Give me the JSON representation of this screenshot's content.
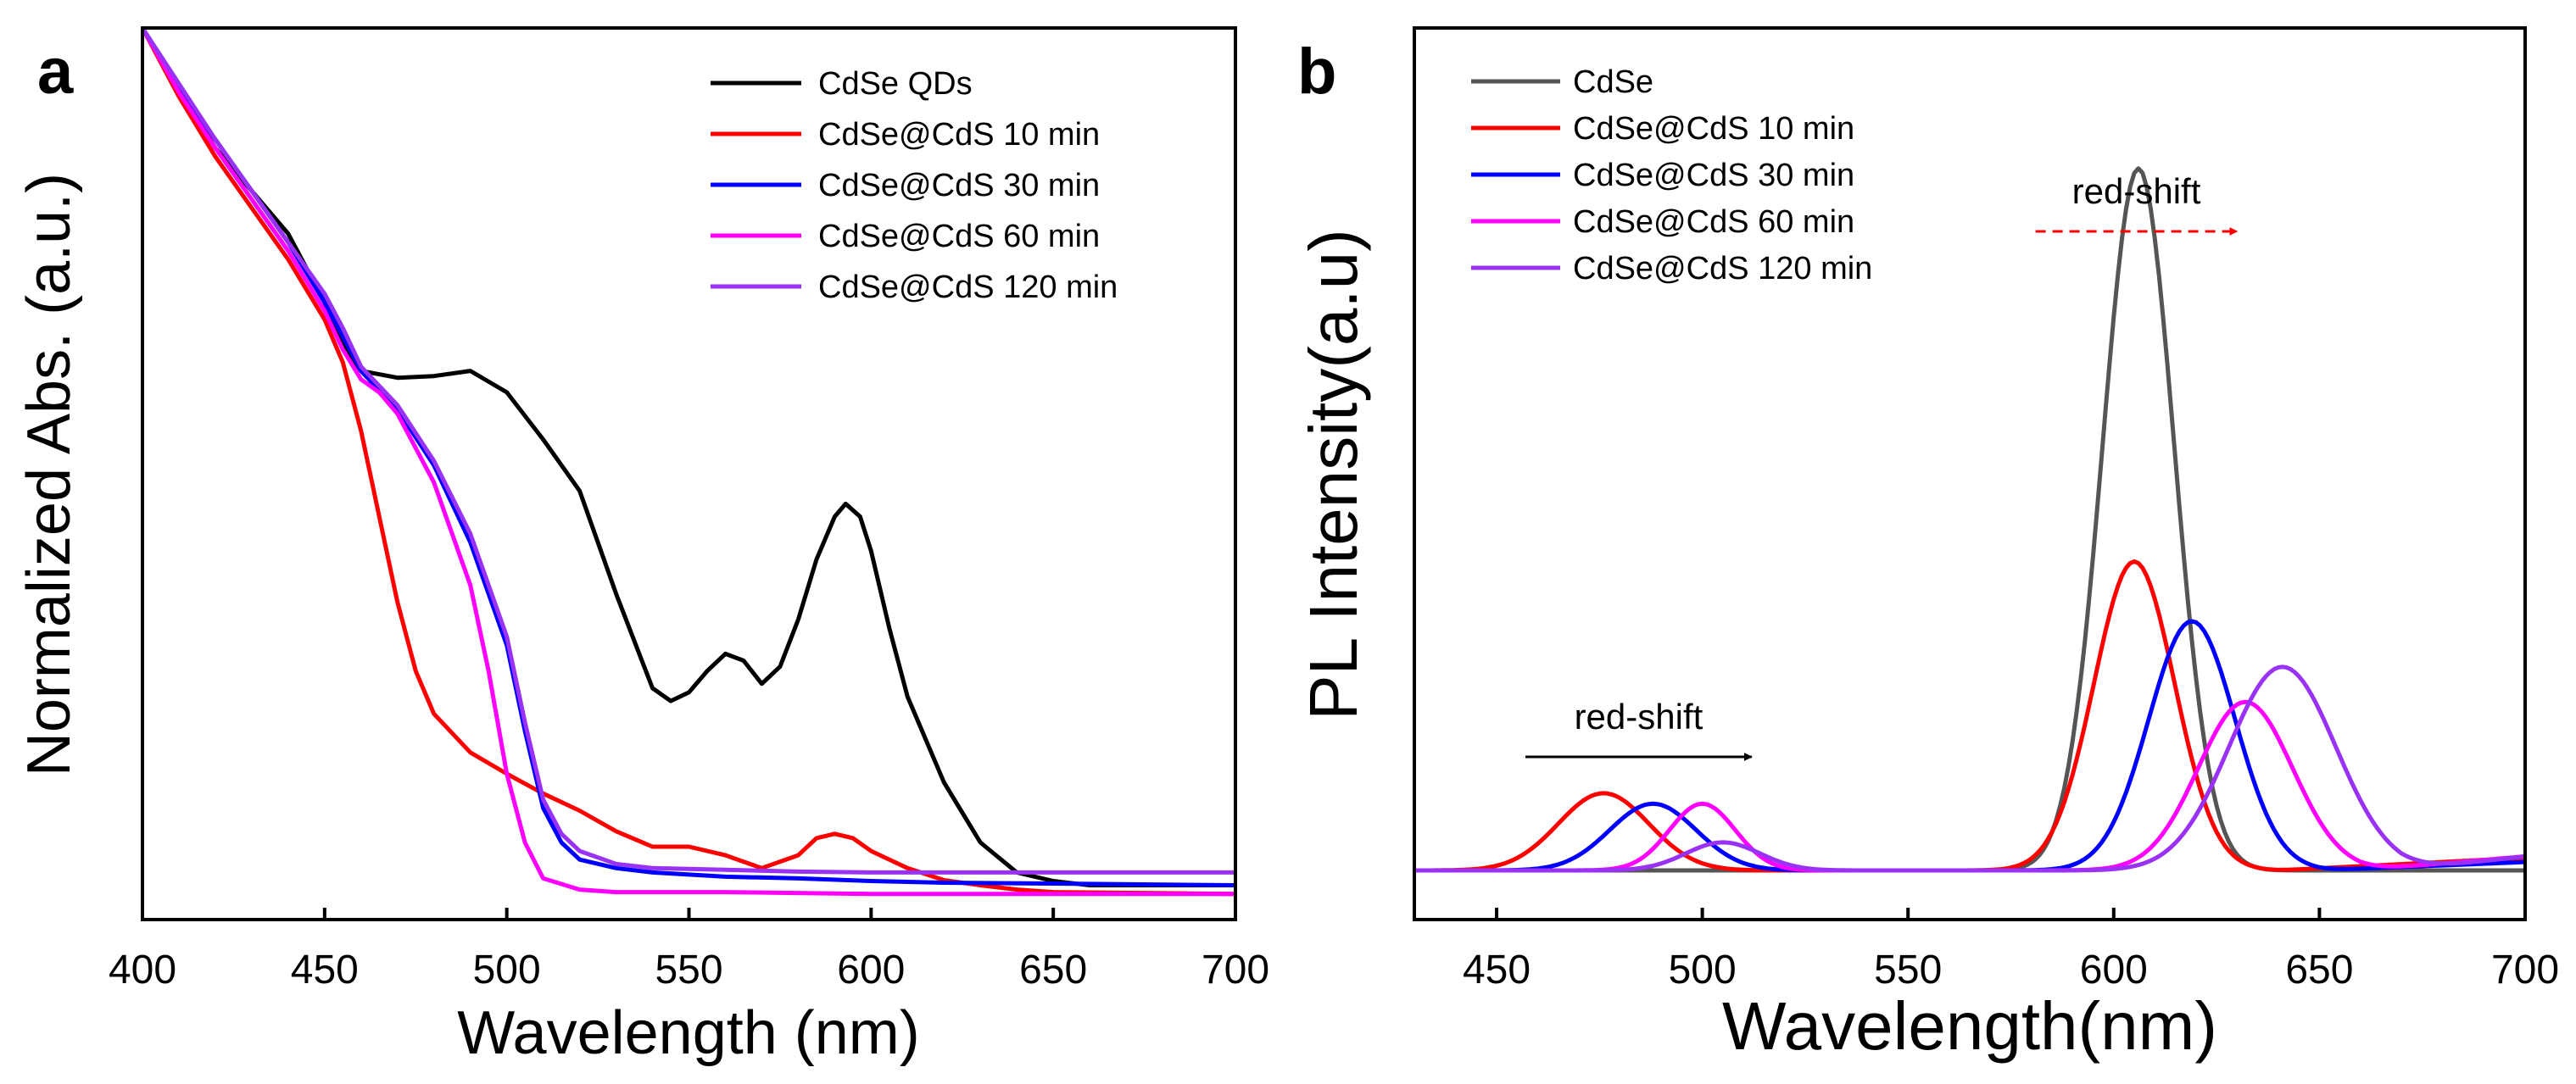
{
  "chart_data": [
    {
      "panel_label": "a",
      "type": "line",
      "xlabel": "Wavelength (nm)",
      "ylabel": "Normalized Abs. (a.u.)",
      "xlim": [
        400,
        700
      ],
      "ylim": [
        -0.04,
        1.0
      ],
      "xticks": [
        400,
        450,
        500,
        550,
        600,
        650,
        700
      ],
      "yticks_shown": false,
      "legend_position": "top-right",
      "series": [
        {
          "name": "CdSe QDs",
          "color": "#000000",
          "x": [
            400,
            410,
            420,
            430,
            440,
            450,
            455,
            460,
            470,
            480,
            490,
            500,
            510,
            520,
            530,
            540,
            545,
            550,
            555,
            560,
            565,
            570,
            575,
            580,
            585,
            590,
            593,
            597,
            600,
            605,
            610,
            620,
            630,
            640,
            650,
            660,
            680,
            700
          ],
          "y": [
            1.0,
            0.93,
            0.86,
            0.81,
            0.76,
            0.68,
            0.63,
            0.6,
            0.592,
            0.594,
            0.6,
            0.575,
            0.52,
            0.46,
            0.34,
            0.23,
            0.215,
            0.225,
            0.25,
            0.27,
            0.262,
            0.235,
            0.255,
            0.31,
            0.38,
            0.43,
            0.445,
            0.43,
            0.39,
            0.3,
            0.22,
            0.12,
            0.05,
            0.015,
            0.005,
            0.0,
            0.0,
            0.0
          ]
        },
        {
          "name": "CdSe@CdS 10 min",
          "color": "#ff0000",
          "x": [
            400,
            410,
            420,
            430,
            440,
            450,
            455,
            460,
            465,
            470,
            475,
            480,
            490,
            500,
            510,
            520,
            530,
            540,
            550,
            560,
            570,
            580,
            585,
            590,
            595,
            600,
            610,
            620,
            630,
            640,
            650,
            700
          ],
          "y": [
            1.0,
            0.92,
            0.85,
            0.79,
            0.73,
            0.66,
            0.61,
            0.53,
            0.43,
            0.33,
            0.25,
            0.2,
            0.155,
            0.13,
            0.107,
            0.087,
            0.063,
            0.045,
            0.045,
            0.035,
            0.02,
            0.035,
            0.055,
            0.06,
            0.055,
            0.04,
            0.02,
            0.006,
            0.0,
            -0.005,
            -0.008,
            -0.01
          ]
        },
        {
          "name": "CdSe@CdS 30 min",
          "color": "#0000ff",
          "x": [
            400,
            410,
            420,
            430,
            440,
            450,
            455,
            460,
            470,
            480,
            490,
            500,
            505,
            510,
            515,
            520,
            530,
            540,
            560,
            580,
            600,
            620,
            650,
            700
          ],
          "y": [
            1.0,
            0.93,
            0.87,
            0.81,
            0.75,
            0.68,
            0.64,
            0.6,
            0.555,
            0.49,
            0.4,
            0.28,
            0.18,
            0.09,
            0.05,
            0.03,
            0.02,
            0.015,
            0.01,
            0.008,
            0.005,
            0.003,
            0.002,
            0.0
          ]
        },
        {
          "name": "CdSe@CdS 60 min",
          "color": "#ff00ff",
          "x": [
            400,
            410,
            420,
            430,
            440,
            450,
            455,
            460,
            465,
            470,
            480,
            490,
            495,
            500,
            505,
            510,
            520,
            530,
            560,
            600,
            650,
            700
          ],
          "y": [
            1.0,
            0.925,
            0.86,
            0.8,
            0.74,
            0.67,
            0.625,
            0.59,
            0.575,
            0.55,
            0.47,
            0.35,
            0.25,
            0.13,
            0.05,
            0.008,
            -0.005,
            -0.008,
            -0.008,
            -0.01,
            -0.01,
            -0.01
          ]
        },
        {
          "name": "CdSe@CdS 120 min",
          "color": "#9932f5",
          "x": [
            400,
            410,
            420,
            430,
            440,
            450,
            455,
            460,
            470,
            480,
            490,
            500,
            505,
            510,
            515,
            520,
            530,
            540,
            560,
            580,
            600,
            620,
            650,
            700
          ],
          "y": [
            1.0,
            0.935,
            0.87,
            0.81,
            0.75,
            0.69,
            0.65,
            0.605,
            0.56,
            0.495,
            0.41,
            0.29,
            0.19,
            0.1,
            0.06,
            0.04,
            0.025,
            0.02,
            0.018,
            0.016,
            0.015,
            0.015,
            0.015,
            0.015
          ]
        }
      ]
    },
    {
      "panel_label": "b",
      "type": "line",
      "xlabel": "Wavelength(nm)",
      "ylabel": "PL Intensity(a.u)",
      "xlim": [
        430,
        700
      ],
      "ylim": [
        -0.07,
        1.2
      ],
      "xticks": [
        450,
        500,
        550,
        600,
        650,
        700
      ],
      "yticks_shown": false,
      "legend_position": "top-left",
      "annotations": [
        {
          "text": "red-shift",
          "arrow_from_x": 457,
          "arrow_to_x": 512,
          "color": "#000000",
          "style": "solid"
        },
        {
          "text": "red-shift",
          "arrow_from_x": 581,
          "arrow_to_x": 630,
          "color": "#ff0000",
          "style": "dashed"
        }
      ],
      "series": [
        {
          "name": "CdSe",
          "color": "#555555",
          "baseline": 0.0,
          "peaks": [
            {
              "center": 606,
              "height": 1.0,
              "width": 8.7
            }
          ]
        },
        {
          "name": "CdSe@CdS 10 min",
          "color": "#ff0000",
          "baseline": 0.0,
          "tail": {
            "start_x": 640,
            "end_x": 700,
            "end_y": 0.018
          },
          "peaks": [
            {
              "center": 476,
              "height": 0.11,
              "width": 11
            },
            {
              "center": 605,
              "height": 0.44,
              "width": 9.8
            }
          ]
        },
        {
          "name": "CdSe@CdS 30 min",
          "color": "#0000ff",
          "baseline": 0.0,
          "tail": {
            "start_x": 650,
            "end_x": 700,
            "end_y": 0.012
          },
          "peaks": [
            {
              "center": 488,
              "height": 0.095,
              "width": 10.5
            },
            {
              "center": 619,
              "height": 0.355,
              "width": 10.5
            }
          ]
        },
        {
          "name": "CdSe@CdS 60 min",
          "color": "#ff00ff",
          "baseline": 0.0,
          "tail": {
            "start_x": 660,
            "end_x": 700,
            "end_y": 0.02
          },
          "peaks": [
            {
              "center": 500,
              "height": 0.095,
              "width": 8
            },
            {
              "center": 632,
              "height": 0.24,
              "width": 11.5
            }
          ]
        },
        {
          "name": "CdSe@CdS 120 min",
          "color": "#9932f5",
          "baseline": 0.0,
          "tail": {
            "start_x": 670,
            "end_x": 700,
            "end_y": 0.02
          },
          "peaks": [
            {
              "center": 505,
              "height": 0.04,
              "width": 9
            },
            {
              "center": 641,
              "height": 0.29,
              "width": 13
            }
          ]
        }
      ]
    }
  ]
}
